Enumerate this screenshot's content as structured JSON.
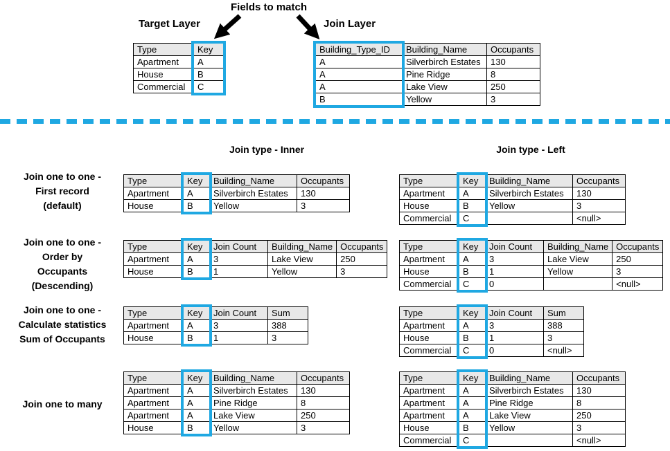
{
  "colors": {
    "highlight": "#1fa8e2",
    "header_bg": "#e8e8e8"
  },
  "top": {
    "fields_to_match": "Fields to match",
    "target_layer_title": "Target Layer",
    "join_layer_title": "Join Layer",
    "target_table": {
      "headers": [
        "Type",
        "Key"
      ],
      "key_col": 1,
      "rows": [
        [
          "Apartment",
          "A"
        ],
        [
          "House",
          "B"
        ],
        [
          "Commercial",
          "C"
        ]
      ]
    },
    "join_table": {
      "headers": [
        "Building_Type_ID",
        "Building_Name",
        "Occupants"
      ],
      "key_col": 0,
      "rows": [
        [
          "A",
          "Silverbirch Estates",
          "130"
        ],
        [
          "A",
          "Pine Ridge",
          "8"
        ],
        [
          "A",
          "Lake View",
          "250"
        ],
        [
          "B",
          "Yellow",
          "3"
        ]
      ]
    }
  },
  "join_type_inner_title": "Join type - Inner",
  "join_type_left_title": "Join type - Left",
  "examples": [
    {
      "label_lines": [
        "Join one to one -",
        "First record",
        "(default)"
      ],
      "inner_table": {
        "headers": [
          "Type",
          "Key",
          "Building_Name",
          "Occupants"
        ],
        "key_col": 1,
        "rows": [
          [
            "Apartment",
            "A",
            "Silverbirch Estates",
            "130"
          ],
          [
            "House",
            "B",
            "Yellow",
            "3"
          ]
        ]
      },
      "left_table": {
        "headers": [
          "Type",
          "Key",
          "Building_Name",
          "Occupants"
        ],
        "key_col": 1,
        "rows": [
          [
            "Apartment",
            "A",
            "Silverbirch Estates",
            "130"
          ],
          [
            "House",
            "B",
            "Yellow",
            "3"
          ],
          [
            "Commercial",
            "C",
            "",
            "<null>"
          ]
        ]
      }
    },
    {
      "label_lines": [
        "Join one to one -",
        "Order by",
        "Occupants",
        "(Descending)"
      ],
      "inner_table": {
        "headers": [
          "Type",
          "Key",
          "Join Count",
          "Building_Name",
          "Occupants"
        ],
        "key_col": 1,
        "rows": [
          [
            "Apartment",
            "A",
            "3",
            "Lake View",
            "250"
          ],
          [
            "House",
            "B",
            "1",
            "Yellow",
            "3"
          ]
        ]
      },
      "left_table": {
        "headers": [
          "Type",
          "Key",
          "Join Count",
          "Building_Name",
          "Occupants"
        ],
        "key_col": 1,
        "rows": [
          [
            "Apartment",
            "A",
            "3",
            "Lake View",
            "250"
          ],
          [
            "House",
            "B",
            "1",
            "Yellow",
            "3"
          ],
          [
            "Commercial",
            "C",
            "0",
            "",
            "<null>"
          ]
        ]
      }
    },
    {
      "label_lines": [
        "Join one to one -",
        "Calculate statistics",
        "Sum of Occupants"
      ],
      "inner_table": {
        "headers": [
          "Type",
          "Key",
          "Join Count",
          "Sum"
        ],
        "key_col": 1,
        "rows": [
          [
            "Apartment",
            "A",
            "3",
            "388"
          ],
          [
            "House",
            "B",
            "1",
            "3"
          ]
        ]
      },
      "left_table": {
        "headers": [
          "Type",
          "Key",
          "Join Count",
          "Sum"
        ],
        "key_col": 1,
        "rows": [
          [
            "Apartment",
            "A",
            "3",
            "388"
          ],
          [
            "House",
            "B",
            "1",
            "3"
          ],
          [
            "Commercial",
            "C",
            "0",
            "<null>"
          ]
        ]
      }
    },
    {
      "label_lines": [
        "Join one to many"
      ],
      "inner_table": {
        "headers": [
          "Type",
          "Key",
          "Building_Name",
          "Occupants"
        ],
        "key_col": 1,
        "rows": [
          [
            "Apartment",
            "A",
            "Silverbirch Estates",
            "130"
          ],
          [
            "Apartment",
            "A",
            "Pine Ridge",
            "8"
          ],
          [
            "Apartment",
            "A",
            "Lake View",
            "250"
          ],
          [
            "House",
            "B",
            "Yellow",
            "3"
          ]
        ]
      },
      "left_table": {
        "headers": [
          "Type",
          "Key",
          "Building_Name",
          "Occupants"
        ],
        "key_col": 1,
        "rows": [
          [
            "Apartment",
            "A",
            "Silverbirch Estates",
            "130"
          ],
          [
            "Apartment",
            "A",
            "Pine Ridge",
            "8"
          ],
          [
            "Apartment",
            "A",
            "Lake View",
            "250"
          ],
          [
            "House",
            "B",
            "Yellow",
            "3"
          ],
          [
            "Commercial",
            "C",
            "",
            "<null>"
          ]
        ]
      }
    }
  ]
}
